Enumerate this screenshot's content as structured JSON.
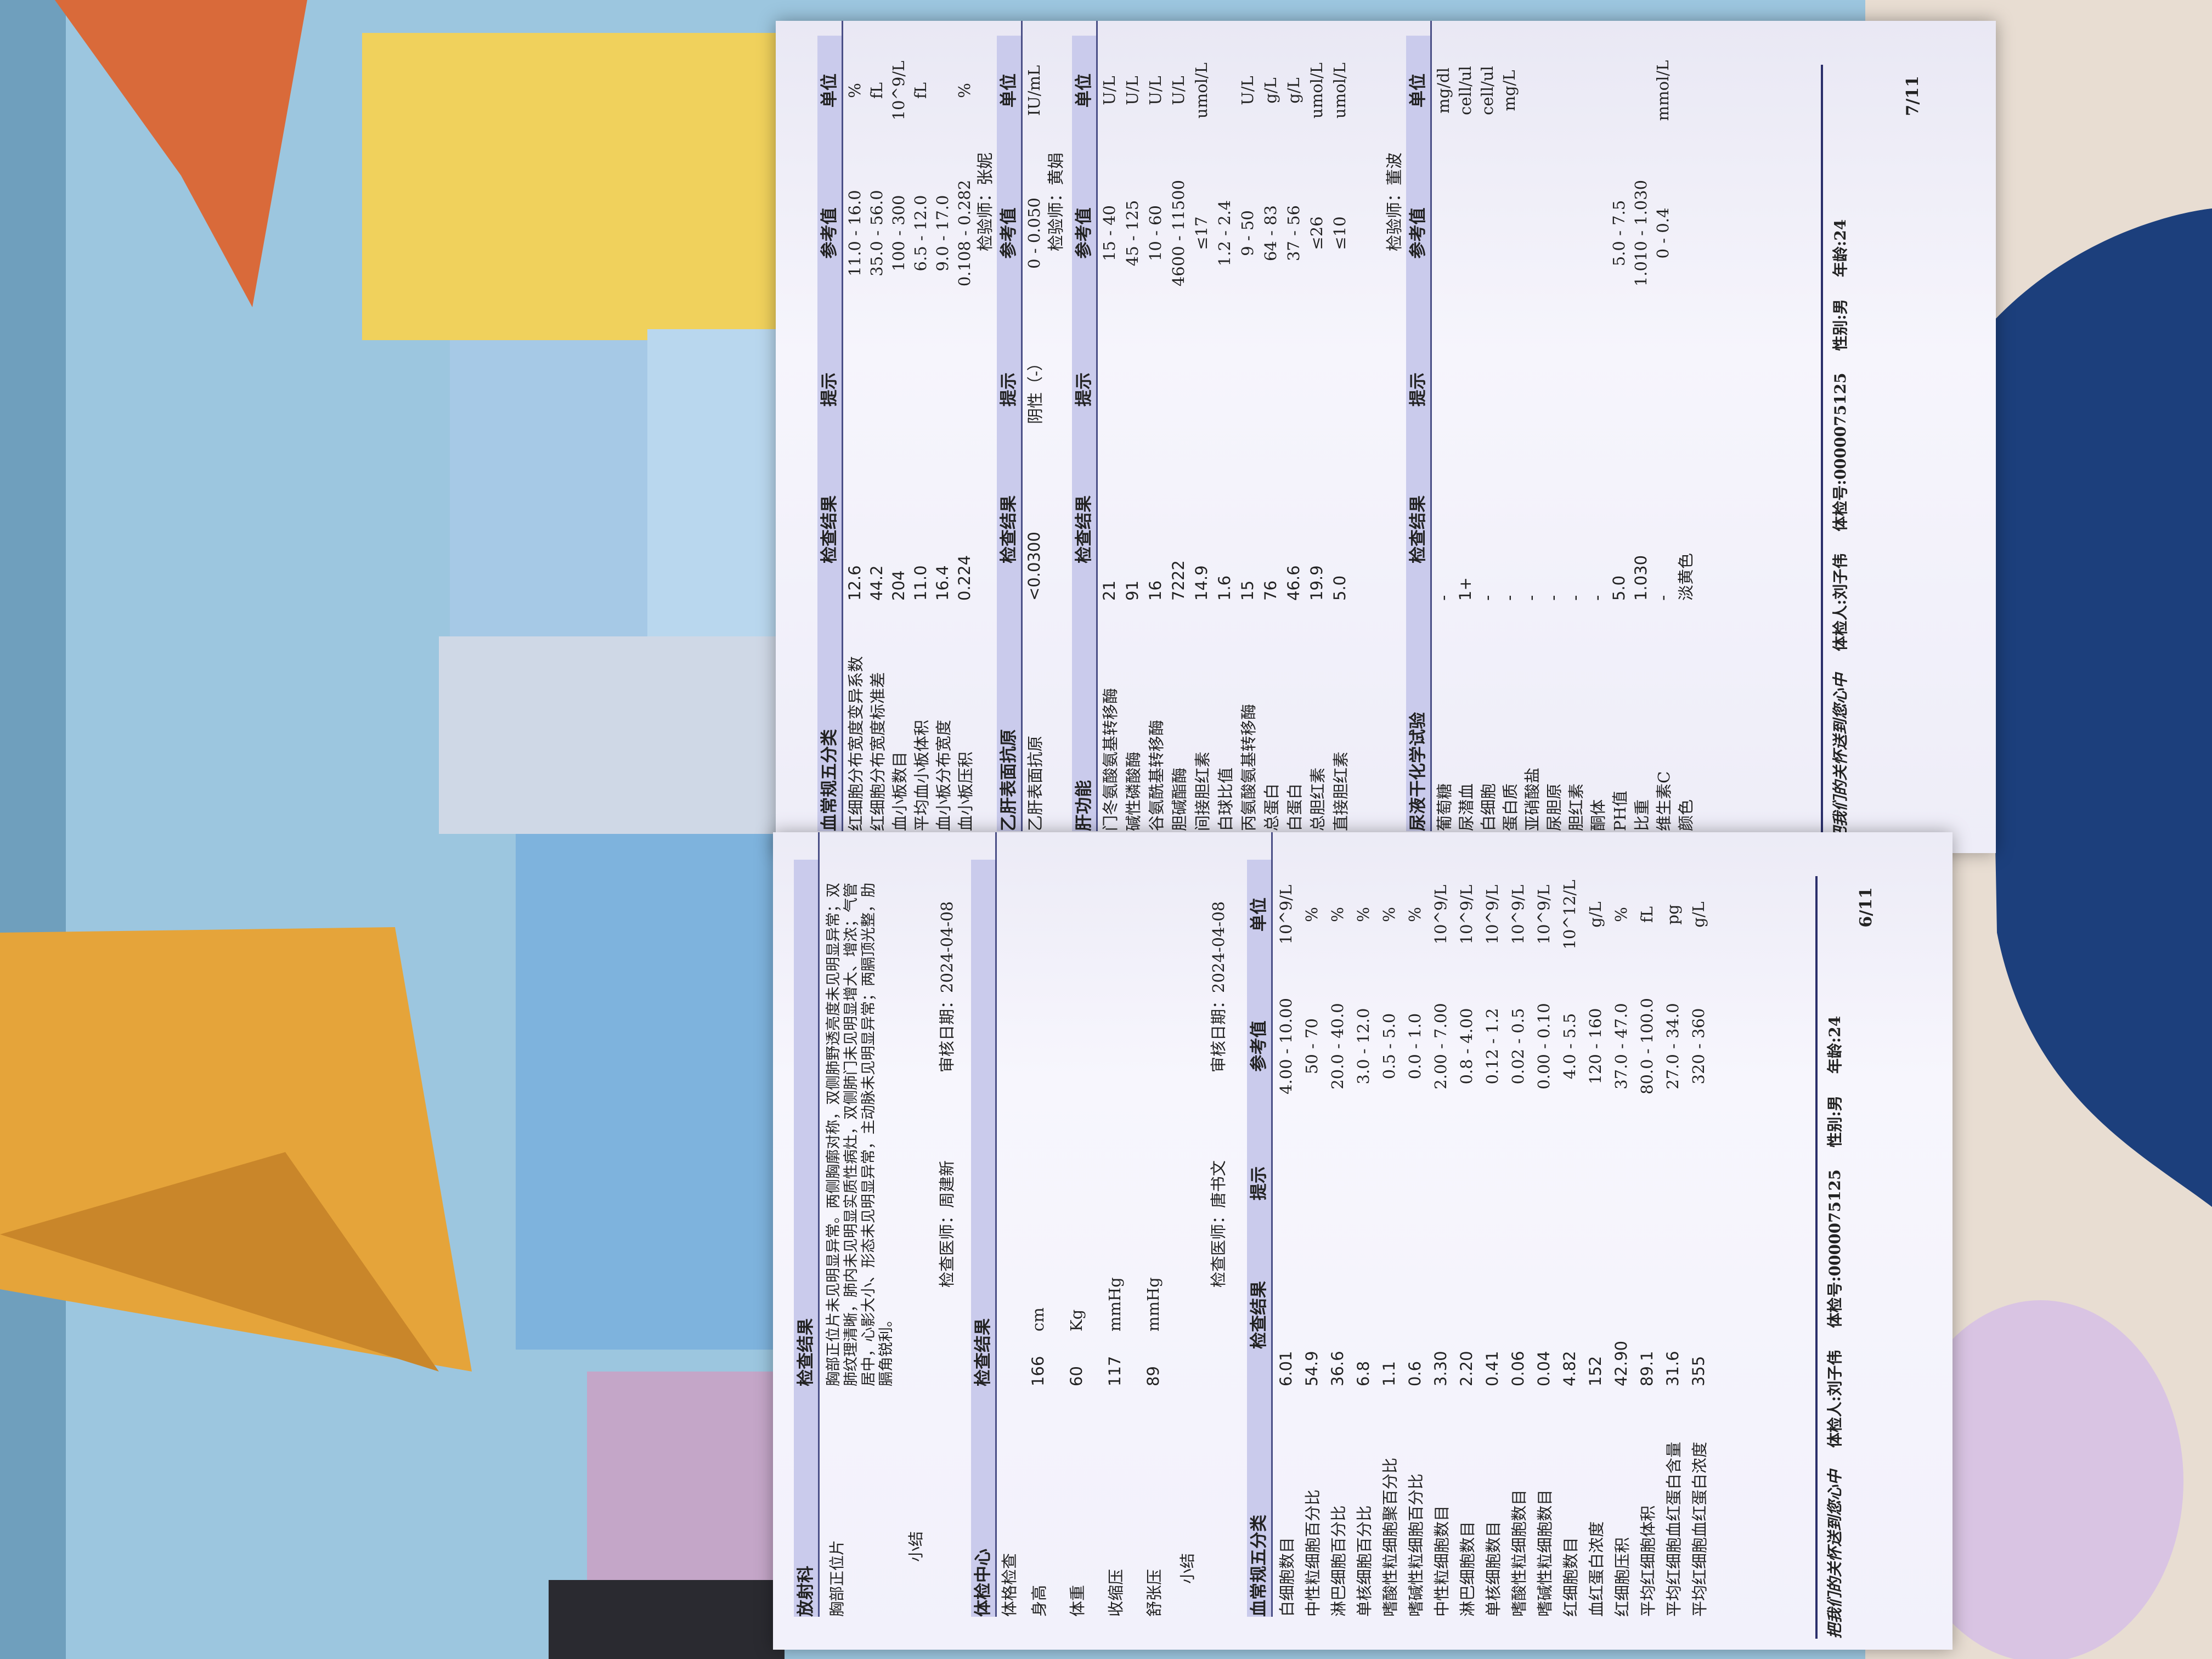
{
  "colors": {
    "header_bar": "#cacbec",
    "rule": "#2b2f6b",
    "page": "#f4f3fb",
    "glass": "#9cc6df",
    "plane": "#e5a43a",
    "fabric": "#1c3f7c"
  },
  "page7": {
    "cbc": {
      "title": "血常规五分类",
      "headers": [
        "检查结果",
        "提示",
        "参考值",
        "单位"
      ],
      "rows": [
        [
          "红细胞分布宽度变异系数",
          "12.6",
          "",
          "11.0 - 16.0",
          "%"
        ],
        [
          "红细胞分布宽度标准差",
          "44.2",
          "",
          "35.0 - 56.0",
          "fL"
        ],
        [
          "血小板数目",
          "204",
          "",
          "100 - 300",
          "10^9/L"
        ],
        [
          "平均血小板体积",
          "11.0",
          "",
          "6.5 - 12.0",
          "fL"
        ],
        [
          "血小板分布宽度",
          "16.4",
          "",
          "9.0 - 17.0",
          ""
        ],
        [
          "血小板压积",
          "0.224",
          "",
          "0.108 - 0.282",
          "%"
        ]
      ],
      "signer": "检验师：张妮"
    },
    "hbsag": {
      "title": "乙肝表面抗原",
      "headers": [
        "检查结果",
        "提示",
        "参考值",
        "单位"
      ],
      "rows": [
        [
          "乙肝表面抗原",
          "<0.0300",
          "阴性（-）",
          "0 - 0.050",
          "IU/mL"
        ]
      ],
      "signer": "检验师：黄娟"
    },
    "liver": {
      "title": "肝功能",
      "headers": [
        "检查结果",
        "提示",
        "参考值",
        "单位"
      ],
      "rows": [
        [
          "门冬氨酸氨基转移酶",
          "21",
          "",
          "15 - 40",
          "U/L"
        ],
        [
          "碱性磷酸酶",
          "91",
          "",
          "45 - 125",
          "U/L"
        ],
        [
          "谷氨酰基转移酶",
          "16",
          "",
          "10 - 60",
          "U/L"
        ],
        [
          "胆碱酯酶",
          "7222",
          "",
          "4600 - 11500",
          "U/L"
        ],
        [
          "间接胆红素",
          "14.9",
          "",
          "≤17",
          "umol/L"
        ],
        [
          "白球比值",
          "1.6",
          "",
          "1.2 - 2.4",
          ""
        ],
        [
          "丙氨酸氨基转移酶",
          "15",
          "",
          "9 - 50",
          "U/L"
        ],
        [
          "总蛋白",
          "76",
          "",
          "64 - 83",
          "g/L"
        ],
        [
          "白蛋白",
          "46.6",
          "",
          "37 - 56",
          "g/L"
        ],
        [
          "总胆红素",
          "19.9",
          "",
          "≤26",
          "umol/L"
        ],
        [
          "直接胆红素",
          "5.0",
          "",
          "≤10",
          "umol/L"
        ]
      ],
      "signer": "检验师：董波"
    },
    "urine": {
      "title": "尿液干化学试验",
      "headers": [
        "检查结果",
        "提示",
        "参考值",
        "单位"
      ],
      "rows": [
        [
          "葡萄糖",
          "-",
          "",
          "",
          "mg/dl"
        ],
        [
          "尿潜血",
          "1+",
          "",
          "",
          "cell/ul"
        ],
        [
          "白细胞",
          "-",
          "",
          "",
          "cell/ul"
        ],
        [
          "蛋白质",
          "-",
          "",
          "",
          "mg/L"
        ],
        [
          "亚硝酸盐",
          "-",
          "",
          "",
          ""
        ],
        [
          "尿胆原",
          "-",
          "",
          "",
          ""
        ],
        [
          "胆红素",
          "-",
          "",
          "",
          ""
        ],
        [
          "酮体",
          "-",
          "",
          "",
          ""
        ],
        [
          "PH值",
          "5.0",
          "",
          "5.0 - 7.5",
          ""
        ],
        [
          "比重",
          "1.030",
          "",
          "1.010 - 1.030",
          ""
        ],
        [
          "维生素C",
          "-",
          "",
          "0 - 0.4",
          "mmol/L"
        ],
        [
          "颜色",
          "淡黄色",
          "",
          "",
          ""
        ]
      ]
    },
    "footer": {
      "slogan": "把我们的关怀送到您心中",
      "person": "体检人:刘子伟",
      "id": "体检号:0000075125",
      "sex": "性别:男",
      "age": "年龄:24",
      "page": "7/11"
    }
  },
  "page6": {
    "radiology": {
      "title": "放射科",
      "header": "检查结果",
      "item": "胸部正位片",
      "text": "胸部正位片未见明显异常。两侧胸廓对称，双侧肺野透亮度未见明显异常；双肺纹理清晰，肺内未见明显实质性病灶，双侧肺门未见明显增大、增浓；气管居中，心影大小、形态未见明显异常，主动脉未见明显异常；两膈顶光整，肋膈角锐利。",
      "summary": "小结",
      "doctor": "检查医师：周建新",
      "review": "审核日期：2024-04-08"
    },
    "physical": {
      "title": "体检中心",
      "header": "检查结果",
      "sub": "体格检查",
      "rows": [
        [
          "身高",
          "166",
          "cm"
        ],
        [
          "体重",
          "60",
          "Kg"
        ],
        [
          "收缩压",
          "117",
          "mmHg"
        ],
        [
          "舒张压",
          "89",
          "mmHg"
        ]
      ],
      "summary": "小结",
      "doctor": "检查医师：唐书文",
      "review": "审核日期：2024-04-08"
    },
    "cbc": {
      "title": "血常规五分类",
      "headers": [
        "检查结果",
        "提示",
        "参考值",
        "单位"
      ],
      "rows": [
        [
          "白细胞数目",
          "6.01",
          "",
          "4.00 - 10.00",
          "10^9/L"
        ],
        [
          "中性粒细胞百分比",
          "54.9",
          "",
          "50 - 70",
          "%"
        ],
        [
          "淋巴细胞百分比",
          "36.6",
          "",
          "20.0 - 40.0",
          "%"
        ],
        [
          "单核细胞百分比",
          "6.8",
          "",
          "3.0 - 12.0",
          "%"
        ],
        [
          "嗜酸性粒细胞聚百分比",
          "1.1",
          "",
          "0.5 - 5.0",
          "%"
        ],
        [
          "嗜碱性粒细胞百分比",
          "0.6",
          "",
          "0.0 - 1.0",
          "%"
        ],
        [
          "中性粒细胞数目",
          "3.30",
          "",
          "2.00 - 7.00",
          "10^9/L"
        ],
        [
          "淋巴细胞数目",
          "2.20",
          "",
          "0.8 - 4.00",
          "10^9/L"
        ],
        [
          "单核细胞数目",
          "0.41",
          "",
          "0.12 - 1.2",
          "10^9/L"
        ],
        [
          "嗜酸性粒细胞数目",
          "0.06",
          "",
          "0.02 - 0.5",
          "10^9/L"
        ],
        [
          "嗜碱性粒细胞数目",
          "0.04",
          "",
          "0.00 - 0.10",
          "10^9/L"
        ],
        [
          "红细胞数目",
          "4.82",
          "",
          "4.0 - 5.5",
          "10^12/L"
        ],
        [
          "血红蛋白浓度",
          "152",
          "",
          "120 - 160",
          "g/L"
        ],
        [
          "红细胞压积",
          "42.90",
          "",
          "37.0 - 47.0",
          "%"
        ],
        [
          "平均红细胞体积",
          "89.1",
          "",
          "80.0 - 100.0",
          "fL"
        ],
        [
          "平均红细胞血红蛋白含量",
          "31.6",
          "",
          "27.0 - 34.0",
          "pg"
        ],
        [
          "平均红细胞血红蛋白浓度",
          "355",
          "",
          "320 - 360",
          "g/L"
        ]
      ]
    },
    "footer": {
      "slogan": "把我们的关怀送到您心中",
      "person": "体检人:刘子伟",
      "id": "体检号:0000075125",
      "sex": "性别:男",
      "age": "年龄:24",
      "page": "6/11"
    }
  }
}
